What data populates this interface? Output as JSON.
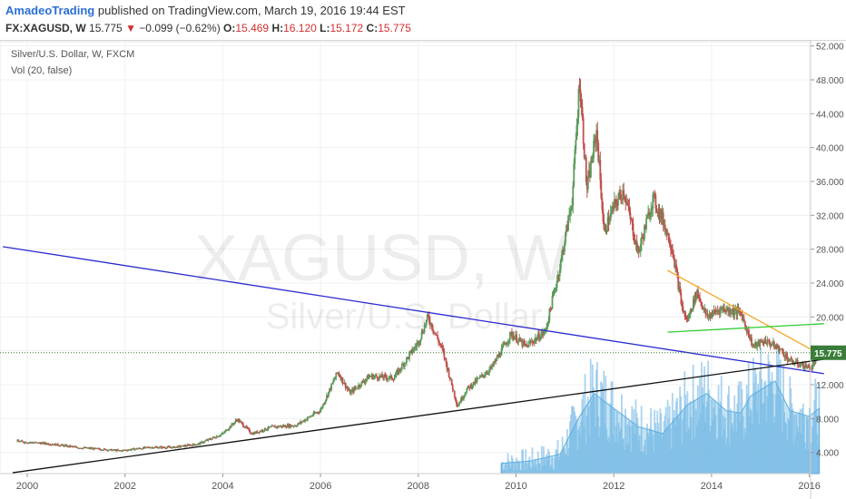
{
  "header": {
    "author": "AmadeoTrading",
    "published": " published on TradingView.com, March 19, 2016 19:44 EST",
    "symbol": "FX:XAGUSD, W",
    "last": "15.775",
    "change": "−0.099 (−0.62%)",
    "o_label": "O:",
    "o_value": "15.469",
    "h_label": "H:",
    "h_value": "16.120",
    "l_label": "L:",
    "l_value": "15.172",
    "c_label": "C:",
    "c_value": "15.775"
  },
  "legend": {
    "main": "Silver/U.S. Dollar, W, FXCM",
    "vol": "Vol (20, false)"
  },
  "watermark": {
    "big": "XAGUSD, W",
    "small": "Silver/U.S. Dollar"
  },
  "colors": {
    "up": "#5b9b5b",
    "down": "#c0504d",
    "volume": "#8fc4ea",
    "volume_ma": "#5aaee0",
    "blue_line": "#2a2acf",
    "black_line": "#111111",
    "orange_line": "#f5a623",
    "green_line": "#33cc33",
    "price_badge": "#3a7d3a",
    "grid": "#f0f0f0"
  },
  "chart_data": {
    "type": "candlestick",
    "symbol": "XAGUSD",
    "timeframe": "W",
    "x_ticks": [
      "2000",
      "2002",
      "2004",
      "2006",
      "2008",
      "2010",
      "2012",
      "2014",
      "2016"
    ],
    "y_ticks": [
      "4.000",
      "8.000",
      "12.000",
      "16.000",
      "20.000",
      "24.000",
      "28.000",
      "32.000",
      "36.000",
      "40.000",
      "44.000",
      "48.000",
      "52.000"
    ],
    "ylim": [
      1.5,
      52.5
    ],
    "last_price_label": "15.775",
    "price_path": [
      [
        1999.8,
        5.3
      ],
      [
        2000.5,
        5.0
      ],
      [
        2001.0,
        4.6
      ],
      [
        2001.9,
        4.2
      ],
      [
        2002.5,
        4.6
      ],
      [
        2003.0,
        4.6
      ],
      [
        2003.5,
        5.0
      ],
      [
        2004.0,
        6.2
      ],
      [
        2004.3,
        7.9
      ],
      [
        2004.6,
        6.2
      ],
      [
        2005.0,
        7.0
      ],
      [
        2005.5,
        7.2
      ],
      [
        2006.0,
        9.0
      ],
      [
        2006.35,
        13.5
      ],
      [
        2006.6,
        11.0
      ],
      [
        2007.0,
        13.0
      ],
      [
        2007.5,
        12.8
      ],
      [
        2008.0,
        17.0
      ],
      [
        2008.2,
        20.0
      ],
      [
        2008.5,
        16.0
      ],
      [
        2008.8,
        9.5
      ],
      [
        2009.0,
        11.5
      ],
      [
        2009.5,
        14.0
      ],
      [
        2009.9,
        18.0
      ],
      [
        2010.2,
        16.5
      ],
      [
        2010.6,
        18.3
      ],
      [
        2010.9,
        26.0
      ],
      [
        2011.15,
        34.0
      ],
      [
        2011.3,
        48.0
      ],
      [
        2011.45,
        35.0
      ],
      [
        2011.65,
        42.0
      ],
      [
        2011.8,
        30.0
      ],
      [
        2012.0,
        33.0
      ],
      [
        2012.2,
        35.0
      ],
      [
        2012.5,
        27.5
      ],
      [
        2012.8,
        34.0
      ],
      [
        2013.0,
        31.5
      ],
      [
        2013.2,
        28.0
      ],
      [
        2013.4,
        21.0
      ],
      [
        2013.5,
        19.5
      ],
      [
        2013.7,
        23.0
      ],
      [
        2013.9,
        20.0
      ],
      [
        2014.2,
        21.0
      ],
      [
        2014.6,
        20.5
      ],
      [
        2014.85,
        16.5
      ],
      [
        2015.1,
        17.2
      ],
      [
        2015.4,
        16.2
      ],
      [
        2015.6,
        14.8
      ],
      [
        2015.9,
        14.2
      ],
      [
        2016.05,
        14.0
      ],
      [
        2016.2,
        15.8
      ]
    ],
    "volume_y_range": [
      1.5,
      18.0
    ],
    "volume_ma_path": [
      [
        2009.7,
        2.4
      ],
      [
        2010.3,
        2.6
      ],
      [
        2010.9,
        3.2
      ],
      [
        2011.3,
        6.5
      ],
      [
        2011.6,
        8.5
      ],
      [
        2012.0,
        7.2
      ],
      [
        2012.5,
        5.6
      ],
      [
        2013.0,
        5.0
      ],
      [
        2013.5,
        7.5
      ],
      [
        2013.9,
        8.5
      ],
      [
        2014.3,
        7.0
      ],
      [
        2014.6,
        6.8
      ],
      [
        2014.8,
        8.3
      ],
      [
        2015.3,
        9.6
      ],
      [
        2015.6,
        7.0
      ],
      [
        2016.0,
        6.5
      ],
      [
        2016.2,
        7.2
      ]
    ],
    "trendlines": [
      {
        "name": "blue",
        "from": [
          1999.5,
          28.3
        ],
        "to": [
          2016.3,
          13.3
        ]
      },
      {
        "name": "black",
        "from": [
          1999.7,
          1.6
        ],
        "to": [
          2016.3,
          15.0
        ]
      },
      {
        "name": "orange",
        "from": [
          2013.1,
          25.5
        ],
        "to": [
          2016.15,
          15.8
        ]
      },
      {
        "name": "green",
        "from": [
          2013.1,
          18.2
        ],
        "to": [
          2016.3,
          19.2
        ]
      }
    ]
  }
}
